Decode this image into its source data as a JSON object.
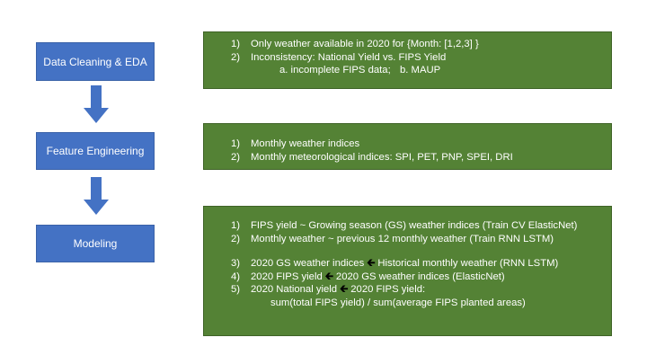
{
  "steps": [
    {
      "label": "Data Cleaning & EDA"
    },
    {
      "label": "Feature Engineering"
    },
    {
      "label": "Modeling"
    }
  ],
  "panels": {
    "cleaning": {
      "line1": {
        "num": "1)",
        "text": "Only weather available in 2020 for {Month: [1,2,3] }"
      },
      "line2": {
        "num": "2)",
        "text": "Inconsistency: National Yield vs. FIPS Yield"
      },
      "line3": {
        "a": "a. incomplete FIPS data;",
        "b": "b.  MAUP"
      }
    },
    "features": {
      "line1": {
        "num": "1)",
        "text": "Monthly weather indices"
      },
      "line2": {
        "num": "2)",
        "text": "Monthly meteorological indices: SPI, PET, PNP, SPEI, DRI"
      }
    },
    "modeling": {
      "line1": {
        "num": "1)",
        "text": "FIPS yield ~ Growing season (GS) weather indices (Train CV ElasticNet)"
      },
      "line2": {
        "num": "2)",
        "text": "Monthly weather ~ previous 12 monthly weather (Train RNN LSTM)"
      },
      "line3": {
        "num": "3)",
        "left": "2020 GS weather indices",
        "right": "Historical monthly weather (RNN LSTM)"
      },
      "line4": {
        "num": "4)",
        "left": "2020 FIPS yield",
        "right": "2020 GS weather indices (ElasticNet)"
      },
      "line5": {
        "num": "5)",
        "left": "2020 National yield",
        "right": "2020 FIPS yield:"
      },
      "line6": {
        "text": "sum(total FIPS yield) / sum(average FIPS planted areas)"
      }
    }
  },
  "colors": {
    "step_fill": "#4472C4",
    "panel_fill": "#548235",
    "arrow": "#4472C4"
  },
  "icons": {
    "flow_arrow": "down-arrow-icon",
    "inline_arrow": "left-arrow-icon"
  }
}
